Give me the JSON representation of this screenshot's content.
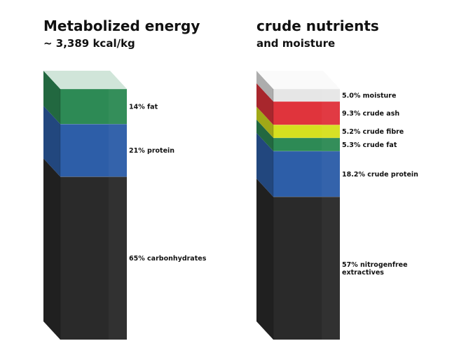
{
  "chart_data": [
    {
      "type": "bar",
      "title": "Metabolized energy",
      "subtitle": "~ 3,389 kcal/kg",
      "series": [
        {
          "label": "65% carbonhydrates",
          "value": 65,
          "color": "#2a2a2a"
        },
        {
          "label": "21% protein",
          "value": 21,
          "color": "#2d5ea8"
        },
        {
          "label": "14% fat",
          "value": 14,
          "color": "#2d8a55"
        }
      ]
    },
    {
      "type": "bar",
      "title": "crude nutrients",
      "subtitle": "and moisture",
      "series": [
        {
          "label": "57% nitrogenfree extractives",
          "value": 57,
          "color": "#2a2a2a"
        },
        {
          "label": "18.2% crude protein",
          "value": 18.2,
          "color": "#2d5ea8"
        },
        {
          "label": "5.3% crude fat",
          "value": 5.3,
          "color": "#2d8a55"
        },
        {
          "label": "5.2% crude fibre",
          "value": 5.2,
          "color": "#d6e01f"
        },
        {
          "label": "9.3% crude ash",
          "value": 9.3,
          "color": "#e0343c"
        },
        {
          "label": "5.0% moisture",
          "value": 5.0,
          "color": "#e6e6e6"
        }
      ]
    }
  ]
}
